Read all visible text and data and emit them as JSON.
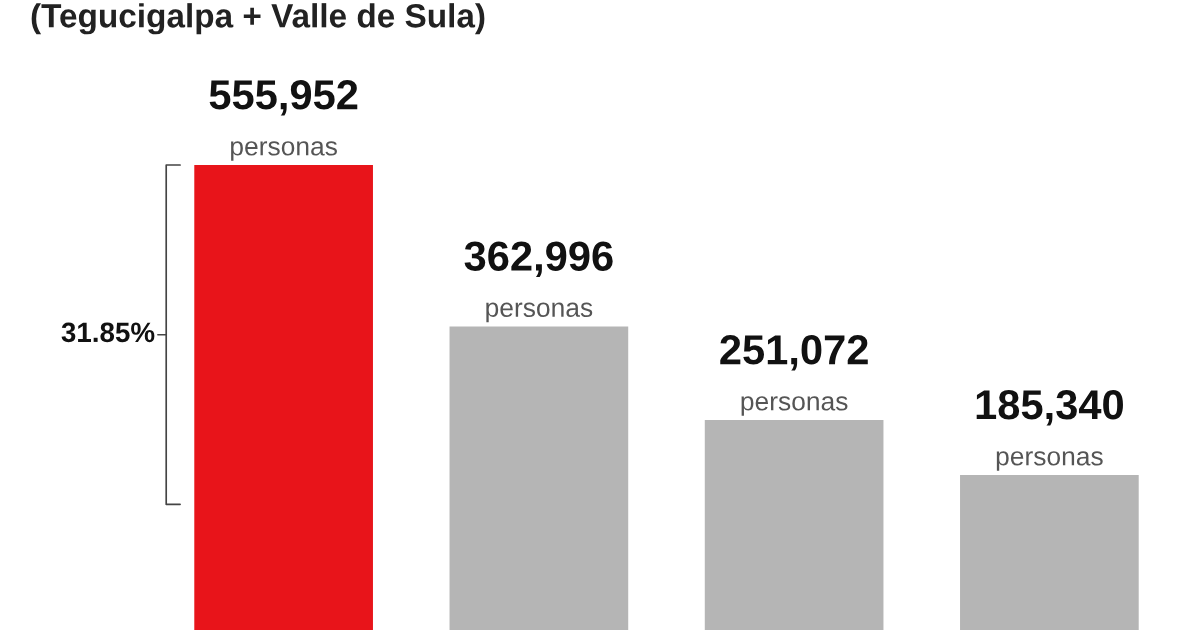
{
  "chart_data": {
    "type": "bar",
    "title": "(Tegucigalpa + Valle de Sula)",
    "categories": [
      null,
      null,
      null,
      null
    ],
    "values": [
      555952,
      362996,
      251072,
      185340
    ],
    "colors": [
      "#e8141a",
      "#b5b5b5",
      "#b5b5b5",
      "#b5b5b5"
    ],
    "value_labels": [
      "555,952\npersonas",
      "362,996\npersonas",
      "251,072\npersonas",
      "185,340\npersonas"
    ],
    "annotations": [
      "31.85%"
    ],
    "grid": false,
    "legend": false
  }
}
